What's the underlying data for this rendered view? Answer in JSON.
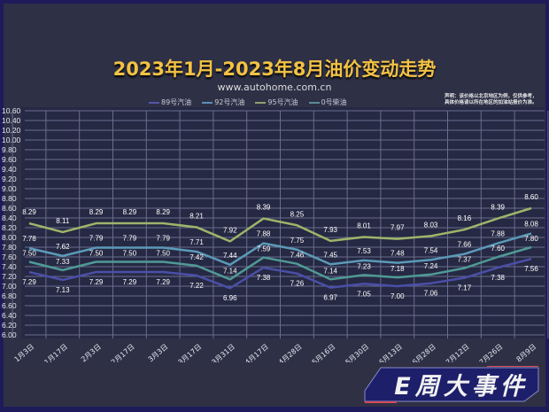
{
  "chart_data": {
    "type": "line",
    "title": "2023年1月-2023年8月油价变动走势",
    "subtitle": "www.autohome.com.cn",
    "xlabel": "",
    "ylabel": "",
    "ylim": [
      6.0,
      10.6
    ],
    "ytick_step": 0.2,
    "grid": true,
    "legend_position": "top",
    "categories": [
      "1月3日",
      "1月17日",
      "2月3日",
      "2月17日",
      "3月3日",
      "3月17日",
      "3月31日",
      "4月17日",
      "4月28日",
      "5月16日",
      "5月30日",
      "6月13日",
      "6月28日",
      "7月12日",
      "7月26日",
      "8月9日"
    ],
    "series": [
      {
        "name": "89号汽油",
        "color": "#4a4fa8",
        "values": [
          7.29,
          7.13,
          7.29,
          7.29,
          7.29,
          7.22,
          6.96,
          7.38,
          7.26,
          6.97,
          7.05,
          7.0,
          7.06,
          7.17,
          7.38,
          7.56
        ]
      },
      {
        "name": "92号汽油",
        "color": "#5b9ab8",
        "values": [
          7.78,
          7.62,
          7.79,
          7.79,
          7.79,
          7.71,
          7.44,
          7.88,
          7.75,
          7.45,
          7.53,
          7.48,
          7.54,
          7.66,
          7.88,
          8.08
        ]
      },
      {
        "name": "95号汽油",
        "color": "#9db56a",
        "values": [
          8.29,
          8.11,
          8.29,
          8.29,
          8.29,
          8.21,
          7.92,
          8.39,
          8.25,
          7.93,
          8.01,
          7.97,
          8.03,
          8.16,
          8.39,
          8.6
        ]
      },
      {
        "name": "0号柴油",
        "color": "#4f9a96",
        "values": [
          7.5,
          7.33,
          7.5,
          7.5,
          7.5,
          7.42,
          7.14,
          7.59,
          7.46,
          7.14,
          7.23,
          7.18,
          7.24,
          7.37,
          7.6,
          7.8
        ]
      }
    ],
    "yticks": [
      "10.60",
      "10.40",
      "10.20",
      "10.00",
      "9.80",
      "9.60",
      "9.40",
      "9.20",
      "9.00",
      "8.80",
      "8.60",
      "8.40",
      "8.20",
      "8.00",
      "7.80",
      "7.60",
      "7.40",
      "7.20",
      "7.00",
      "6.80",
      "6.60",
      "6.40",
      "6.20",
      "6.00"
    ]
  },
  "header": {
    "title": "2023年1月-2023年8月油价变动走势",
    "subtitle": "www.autohome.com.cn"
  },
  "note": {
    "line1": "声明：该价格以北京地区为例，仅供参考，",
    "line2": "具体价格请以所在地区的加油站报价为准。"
  },
  "legend": [
    {
      "label": "89号汽油",
      "color": "#5557a8"
    },
    {
      "label": "92号汽油",
      "color": "#5b8fb4"
    },
    {
      "label": "95号汽油",
      "color": "#8fa070"
    },
    {
      "label": "0号柴油",
      "color": "#5c8a96"
    }
  ],
  "banner": {
    "text": "E周大事件"
  },
  "colors": {
    "background": "#2e3046",
    "border": "#1e1b5a",
    "title": "#f3c244",
    "grid": "#8a8ca8",
    "label": "#ffffff"
  }
}
